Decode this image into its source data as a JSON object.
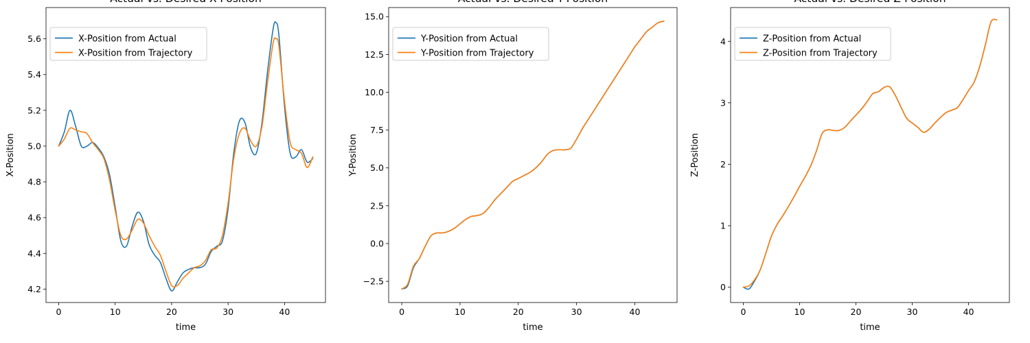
{
  "chart_data": [
    {
      "type": "line",
      "title": "Actual vs. Desired X-Position",
      "xlabel": "time",
      "ylabel": "X-Position",
      "xlim": [
        -2.25,
        47.25
      ],
      "ylim": [
        4.125,
        5.775
      ],
      "xticks": [
        0,
        10,
        20,
        30,
        40
      ],
      "xtick_labels": [
        "0",
        "10",
        "20",
        "30",
        "40"
      ],
      "yticks": [
        4.2,
        4.4,
        4.6,
        4.8,
        5.0,
        5.2,
        5.4,
        5.6
      ],
      "ytick_labels": [
        "4.2",
        "4.4",
        "4.6",
        "4.8",
        "5.0",
        "5.2",
        "5.4",
        "5.6"
      ],
      "legend": "top-left",
      "grid": false,
      "series": [
        {
          "name": "X-Position from Actual",
          "color": "#1f77b4",
          "x": [
            0,
            1,
            2,
            3,
            4,
            5,
            6,
            7,
            8,
            9,
            10,
            11,
            12,
            13,
            14,
            15,
            16,
            17,
            18,
            19,
            20,
            21,
            22,
            23,
            24,
            25,
            26,
            27,
            28,
            29,
            30,
            31,
            32,
            33,
            34,
            35,
            36,
            37,
            38,
            38.5,
            39,
            40,
            41,
            42,
            43,
            44,
            45
          ],
          "y": [
            5.0,
            5.08,
            5.2,
            5.11,
            5.0,
            5.0,
            5.02,
            4.99,
            4.94,
            4.84,
            4.66,
            4.47,
            4.44,
            4.55,
            4.63,
            4.58,
            4.45,
            4.39,
            4.35,
            4.26,
            4.19,
            4.24,
            4.29,
            4.31,
            4.32,
            4.32,
            4.34,
            4.41,
            4.44,
            4.47,
            4.65,
            4.96,
            5.14,
            5.13,
            4.99,
            4.96,
            5.13,
            5.42,
            5.66,
            5.69,
            5.62,
            5.22,
            4.96,
            4.94,
            4.98,
            4.91,
            4.93
          ]
        },
        {
          "name": "X-Position from Trajectory",
          "color": "#ff7f0e",
          "x": [
            0,
            1,
            2,
            3,
            4,
            5,
            6,
            7,
            8,
            9,
            10,
            11,
            12,
            13,
            14,
            15,
            16,
            17,
            18,
            19,
            20,
            21,
            22,
            23,
            24,
            25,
            26,
            27,
            28,
            29,
            30,
            31,
            32,
            33,
            34,
            35,
            36,
            37,
            38,
            38.5,
            39,
            40,
            41,
            42,
            43,
            44,
            45
          ],
          "y": [
            5.0,
            5.04,
            5.1,
            5.09,
            5.08,
            5.07,
            5.02,
            4.98,
            4.93,
            4.81,
            4.64,
            4.5,
            4.48,
            4.53,
            4.59,
            4.57,
            4.5,
            4.44,
            4.39,
            4.3,
            4.22,
            4.22,
            4.26,
            4.29,
            4.32,
            4.33,
            4.36,
            4.42,
            4.43,
            4.5,
            4.68,
            4.93,
            5.07,
            5.1,
            5.03,
            5.0,
            5.11,
            5.36,
            5.58,
            5.6,
            5.56,
            5.25,
            5.02,
            4.98,
            4.96,
            4.88,
            4.94
          ]
        }
      ]
    },
    {
      "type": "line",
      "title": "Actual vs. Desired Y-Position",
      "xlabel": "time",
      "ylabel": "Y-Position",
      "xlim": [
        -2.25,
        47.25
      ],
      "ylim": [
        -3.9,
        15.6
      ],
      "xticks": [
        0,
        10,
        20,
        30,
        40
      ],
      "xtick_labels": [
        "0",
        "10",
        "20",
        "30",
        "40"
      ],
      "yticks": [
        -2.5,
        0,
        2.5,
        5,
        7.5,
        10,
        12.5,
        15
      ],
      "ytick_labels": [
        "−2.5",
        "0.0",
        "2.5",
        "5.0",
        "7.5",
        "10.0",
        "12.5",
        "15.0"
      ],
      "legend": "top-left",
      "grid": false,
      "series": [
        {
          "name": "Y-Position from Actual",
          "color": "#1f77b4",
          "x": [
            0,
            1,
            2,
            3,
            4,
            5,
            6,
            7,
            8,
            9,
            10,
            11,
            12,
            13,
            14,
            15,
            16,
            17,
            18,
            19,
            20,
            21,
            22,
            23,
            24,
            25,
            26,
            27,
            28,
            29,
            30,
            31,
            32,
            33,
            34,
            35,
            36,
            37,
            38,
            39,
            40,
            41,
            42,
            43,
            44,
            45
          ],
          "y": [
            -3.0,
            -2.8,
            -1.6,
            -1.0,
            -0.2,
            0.5,
            0.7,
            0.7,
            0.8,
            1.0,
            1.3,
            1.6,
            1.8,
            1.85,
            2.0,
            2.4,
            2.9,
            3.3,
            3.7,
            4.1,
            4.3,
            4.5,
            4.7,
            5.0,
            5.4,
            5.9,
            6.15,
            6.2,
            6.2,
            6.3,
            6.9,
            7.6,
            8.2,
            8.8,
            9.4,
            10.0,
            10.6,
            11.2,
            11.8,
            12.4,
            13.0,
            13.5,
            14.0,
            14.3,
            14.6,
            14.7
          ]
        },
        {
          "name": "Y-Position from Trajectory",
          "color": "#ff7f0e",
          "x": [
            0,
            1,
            2,
            3,
            4,
            5,
            6,
            7,
            8,
            9,
            10,
            11,
            12,
            13,
            14,
            15,
            16,
            17,
            18,
            19,
            20,
            21,
            22,
            23,
            24,
            25,
            26,
            27,
            28,
            29,
            30,
            31,
            32,
            33,
            34,
            35,
            36,
            37,
            38,
            39,
            40,
            41,
            42,
            43,
            44,
            45
          ],
          "y": [
            -3.0,
            -2.7,
            -1.5,
            -1.0,
            -0.2,
            0.5,
            0.7,
            0.7,
            0.8,
            1.0,
            1.3,
            1.6,
            1.8,
            1.85,
            2.0,
            2.4,
            2.9,
            3.3,
            3.7,
            4.1,
            4.3,
            4.5,
            4.7,
            5.0,
            5.4,
            5.9,
            6.15,
            6.2,
            6.2,
            6.3,
            6.9,
            7.6,
            8.2,
            8.8,
            9.4,
            10.0,
            10.6,
            11.2,
            11.8,
            12.4,
            13.0,
            13.5,
            14.0,
            14.3,
            14.6,
            14.7
          ]
        }
      ]
    },
    {
      "type": "line",
      "title": "Actual vs. Desired Z-Position",
      "xlabel": "time",
      "ylabel": "Z-Position",
      "xlim": [
        -2.25,
        47.25
      ],
      "ylim": [
        -0.25,
        4.55
      ],
      "xticks": [
        0,
        10,
        20,
        30,
        40
      ],
      "xtick_labels": [
        "0",
        "10",
        "20",
        "30",
        "40"
      ],
      "yticks": [
        0,
        1,
        2,
        3,
        4
      ],
      "ytick_labels": [
        "0",
        "1",
        "2",
        "3",
        "4"
      ],
      "legend": "top-left",
      "grid": false,
      "series": [
        {
          "name": "Z-Position from Actual",
          "color": "#1f77b4",
          "x": [
            0,
            1,
            2,
            3,
            4,
            5,
            6,
            7,
            8,
            9,
            10,
            11,
            12,
            13,
            14,
            15,
            16,
            17,
            18,
            19,
            20,
            21,
            22,
            23,
            24,
            25,
            26,
            27,
            28,
            29,
            30,
            31,
            32,
            33,
            34,
            35,
            36,
            37,
            38,
            39,
            40,
            41,
            42,
            43,
            44,
            45
          ],
          "y": [
            0.0,
            -0.03,
            0.1,
            0.28,
            0.55,
            0.83,
            1.02,
            1.16,
            1.31,
            1.47,
            1.64,
            1.8,
            1.98,
            2.22,
            2.5,
            2.56,
            2.55,
            2.55,
            2.6,
            2.7,
            2.8,
            2.9,
            3.02,
            3.15,
            3.18,
            3.25,
            3.26,
            3.12,
            2.93,
            2.75,
            2.67,
            2.6,
            2.52,
            2.57,
            2.67,
            2.76,
            2.84,
            2.88,
            2.92,
            3.05,
            3.2,
            3.34,
            3.6,
            3.95,
            4.32,
            4.35
          ]
        },
        {
          "name": "Z-Position from Trajectory",
          "color": "#ff7f0e",
          "x": [
            0,
            1,
            2,
            3,
            4,
            5,
            6,
            7,
            8,
            9,
            10,
            11,
            12,
            13,
            14,
            15,
            16,
            17,
            18,
            19,
            20,
            21,
            22,
            23,
            24,
            25,
            26,
            27,
            28,
            29,
            30,
            31,
            32,
            33,
            34,
            35,
            36,
            37,
            38,
            39,
            40,
            41,
            42,
            43,
            44,
            45
          ],
          "y": [
            0.0,
            0.02,
            0.12,
            0.28,
            0.55,
            0.83,
            1.02,
            1.16,
            1.31,
            1.47,
            1.64,
            1.8,
            1.98,
            2.22,
            2.5,
            2.56,
            2.55,
            2.55,
            2.6,
            2.7,
            2.8,
            2.9,
            3.02,
            3.15,
            3.18,
            3.25,
            3.26,
            3.12,
            2.93,
            2.75,
            2.67,
            2.6,
            2.52,
            2.57,
            2.67,
            2.76,
            2.84,
            2.88,
            2.92,
            3.05,
            3.2,
            3.34,
            3.6,
            3.95,
            4.32,
            4.35
          ]
        }
      ]
    }
  ]
}
